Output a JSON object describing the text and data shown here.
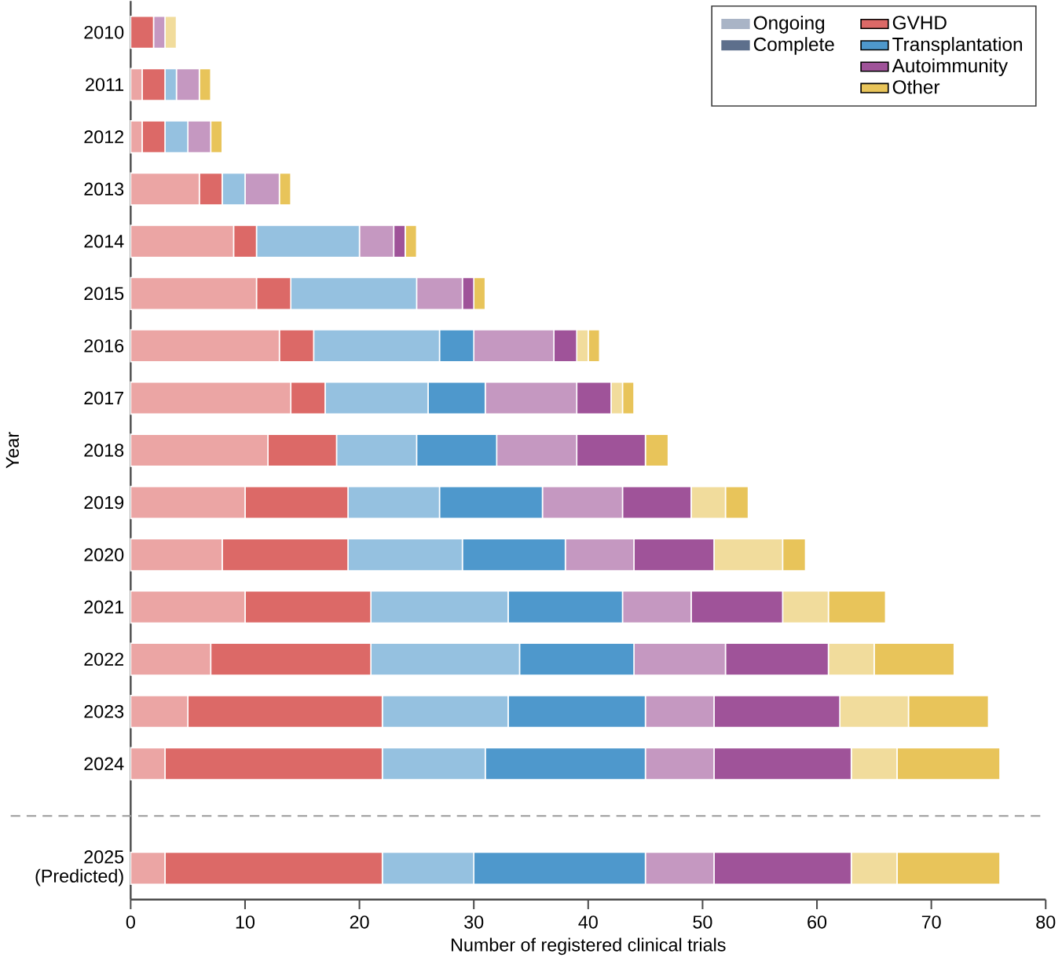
{
  "chart_data": {
    "type": "bar",
    "orientation": "horizontal",
    "stacked": true,
    "categories": [
      "2010",
      "2011",
      "2012",
      "2013",
      "2014",
      "2015",
      "2016",
      "2017",
      "2018",
      "2019",
      "2020",
      "2021",
      "2022",
      "2023",
      "2024",
      "2025 (Predicted)"
    ],
    "xlabel": "Number of registered clinical trials",
    "ylabel": "Year",
    "xlim": [
      0,
      80
    ],
    "xticks": [
      0,
      10,
      20,
      30,
      40,
      50,
      60,
      70,
      80
    ],
    "legend": "top right",
    "annotations": [
      "Ongoing",
      "Complete"
    ],
    "series": [
      {
        "color": "#eba5a4",
        "values": [
          0,
          1,
          1,
          6,
          9,
          11,
          13,
          14,
          12,
          10,
          8,
          10,
          7,
          5,
          3,
          3
        ]
      },
      {
        "name": "GVHD",
        "color": "#dc6967",
        "values": [
          2,
          2,
          2,
          2,
          2,
          3,
          3,
          3,
          6,
          9,
          11,
          11,
          14,
          17,
          19,
          19
        ]
      },
      {
        "color": "#95c1e0",
        "values": [
          0,
          1,
          2,
          2,
          9,
          11,
          11,
          9,
          7,
          8,
          10,
          12,
          13,
          11,
          9,
          8
        ]
      },
      {
        "name": "Transplantation",
        "color": "#4e98cc",
        "values": [
          0,
          0,
          0,
          0,
          0,
          0,
          3,
          5,
          7,
          9,
          9,
          10,
          10,
          12,
          14,
          15
        ]
      },
      {
        "color": "#c598c1",
        "values": [
          1,
          2,
          2,
          3,
          3,
          4,
          7,
          8,
          7,
          7,
          6,
          6,
          8,
          6,
          6,
          6
        ]
      },
      {
        "name": "Autoimmunity",
        "color": "#9f5399",
        "values": [
          0,
          0,
          0,
          0,
          1,
          1,
          2,
          3,
          6,
          6,
          7,
          8,
          9,
          11,
          12,
          12
        ]
      },
      {
        "color": "#f1dc9c",
        "values": [
          1,
          0,
          0,
          0,
          0,
          0,
          1,
          1,
          0,
          3,
          6,
          4,
          4,
          6,
          4,
          4
        ]
      },
      {
        "name": "Other",
        "color": "#e8c45a",
        "values": [
          0,
          1,
          1,
          1,
          1,
          1,
          1,
          1,
          2,
          2,
          2,
          5,
          7,
          7,
          9,
          9
        ]
      }
    ],
    "ref_lines": [
      {
        "axis": "y",
        "line_style": "dashed",
        "color": "#9a9a9a"
      }
    ]
  }
}
